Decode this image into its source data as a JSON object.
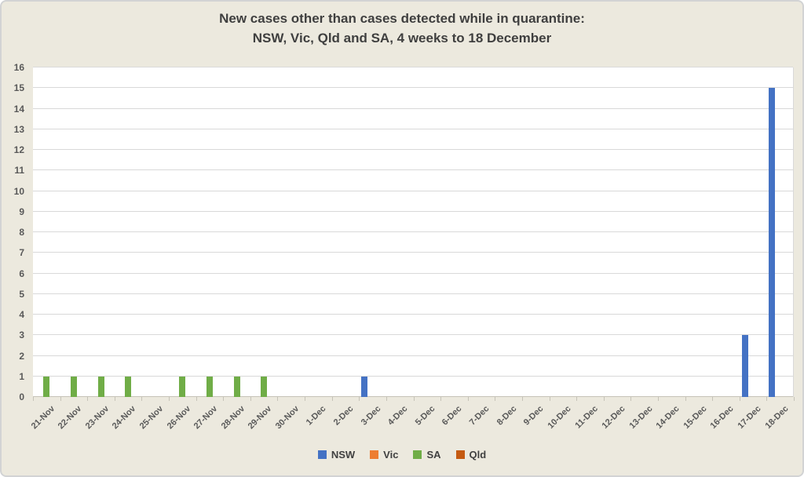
{
  "title": {
    "line1": "New cases other than cases detected while in quarantine:",
    "line2": "NSW, Vic, Qld and SA, 4 weeks to 18 December"
  },
  "colors": {
    "background": "#ECE9DE",
    "frame_border": "#D2D3D4",
    "plot_background": "#FFFFFF",
    "gridline": "#D9D9D9",
    "axis_line": "#C6C3B8",
    "tick": "#C6C3B8",
    "title_text": "#3F3F3F",
    "axis_text": "#595959",
    "legend_text": "#404040"
  },
  "chart_data": {
    "type": "bar",
    "title": "New cases other than cases detected while in quarantine: NSW, Vic, Qld and SA, 4 weeks to 18 December",
    "title_lines": [
      "New cases other than cases detected while in quarantine:",
      "NSW, Vic, Qld and SA, 4 weeks to 18 December"
    ],
    "xlabel": "",
    "ylabel": "",
    "ylim": [
      0,
      16
    ],
    "ytick_step": 1,
    "grid": true,
    "legend_position": "bottom",
    "categories": [
      "21-Nov",
      "22-Nov",
      "23-Nov",
      "24-Nov",
      "25-Nov",
      "26-Nov",
      "27-Nov",
      "28-Nov",
      "29-Nov",
      "30-Nov",
      "1-Dec",
      "2-Dec",
      "3-Dec",
      "4-Dec",
      "5-Dec",
      "6-Dec",
      "7-Dec",
      "8-Dec",
      "9-Dec",
      "10-Dec",
      "11-Dec",
      "12-Dec",
      "13-Dec",
      "14-Dec",
      "15-Dec",
      "16-Dec",
      "17-Dec",
      "18-Dec"
    ],
    "series": [
      {
        "name": "NSW",
        "color": "#4472C4",
        "values": [
          0,
          0,
          0,
          0,
          0,
          0,
          0,
          0,
          0,
          0,
          0,
          0,
          1,
          0,
          0,
          0,
          0,
          0,
          0,
          0,
          0,
          0,
          0,
          0,
          0,
          0,
          3,
          15
        ]
      },
      {
        "name": "Vic",
        "color": "#ED7D31",
        "values": [
          0,
          0,
          0,
          0,
          0,
          0,
          0,
          0,
          0,
          0,
          0,
          0,
          0,
          0,
          0,
          0,
          0,
          0,
          0,
          0,
          0,
          0,
          0,
          0,
          0,
          0,
          0,
          0
        ]
      },
      {
        "name": "SA",
        "color": "#70AD47",
        "values": [
          1,
          1,
          1,
          1,
          0,
          1,
          1,
          1,
          1,
          0,
          0,
          0,
          0,
          0,
          0,
          0,
          0,
          0,
          0,
          0,
          0,
          0,
          0,
          0,
          0,
          0,
          0,
          0
        ]
      },
      {
        "name": "Qld",
        "color": "#C55A11",
        "values": [
          0,
          0,
          0,
          0,
          0,
          0,
          0,
          0,
          0,
          0,
          0,
          0,
          0,
          0,
          0,
          0,
          0,
          0,
          0,
          0,
          0,
          0,
          0,
          0,
          0,
          0,
          0,
          0
        ]
      }
    ]
  }
}
